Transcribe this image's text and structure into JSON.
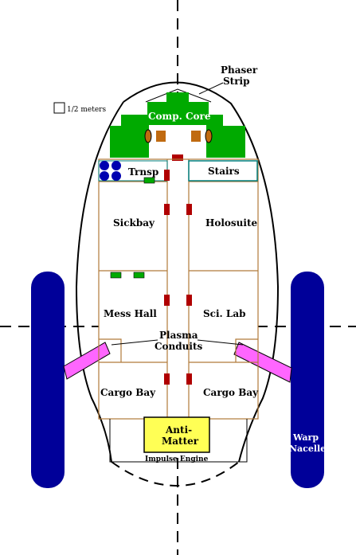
{
  "colors": {
    "hull_outline": "#000000",
    "compartment_line": "#b07a3a",
    "computer_core": "#00aa00",
    "computer_core_accent": "#c06a10",
    "red_marker": "#b00000",
    "green_marker": "#00aa00",
    "transporter_pad": "#0000b0",
    "stairs_outline": "#008080",
    "plasma_conduit": "#ff66ff",
    "warp_nacelle": "#000099",
    "anti_matter": "#ffff55"
  },
  "scale": {
    "label": "1/2 meters"
  },
  "labels": {
    "phaser_strip_line1": "Phaser",
    "phaser_strip_line2": "Strip",
    "computer_core": "Comp. Core",
    "transporter": "Trnsp",
    "stairs": "Stairs",
    "sickbay": "Sickbay",
    "holosuite": "Holosuite",
    "mess_hall": "Mess Hall",
    "sci_lab": "Sci. Lab",
    "plasma_line1": "Plasma",
    "plasma_line2": "Conduits",
    "cargo_bay_left": "Cargo Bay",
    "cargo_bay_right": "Cargo Bay",
    "anti_matter_line1": "Anti-",
    "anti_matter_line2": "Matter",
    "impulse_engine": "Impulse Engine",
    "warp_line1": "Warp",
    "warp_line2": "Nacelle"
  }
}
